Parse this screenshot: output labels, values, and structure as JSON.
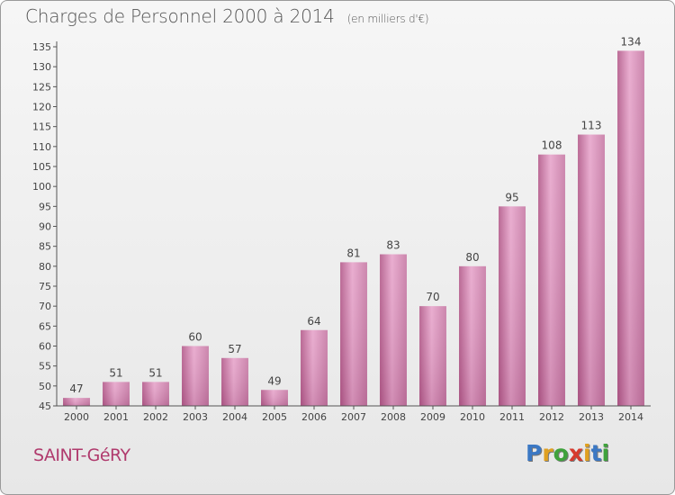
{
  "chart_data": {
    "type": "bar",
    "title": "Charges de Personnel 2000 à 2014",
    "subtitle": "(en milliers d'€)",
    "categories": [
      "2000",
      "2001",
      "2002",
      "2003",
      "2004",
      "2005",
      "2006",
      "2007",
      "2008",
      "2009",
      "2010",
      "2011",
      "2012",
      "2013",
      "2014"
    ],
    "values": [
      47,
      51,
      51,
      60,
      57,
      49,
      64,
      81,
      83,
      70,
      80,
      95,
      108,
      113,
      134
    ],
    "ylim": [
      45,
      135
    ],
    "ytick_step": 5,
    "grid": false,
    "bar_color": "#c86c9c"
  },
  "location": "SAINT-GéRY",
  "logo": {
    "letters": [
      "P",
      "r",
      "o",
      "x",
      "i",
      "t",
      "i"
    ],
    "colors": [
      "#3b78c4",
      "#e0a020",
      "#3fa23c",
      "#d63a2d",
      "#e0a020",
      "#3b78c4",
      "#3fa23c"
    ]
  }
}
